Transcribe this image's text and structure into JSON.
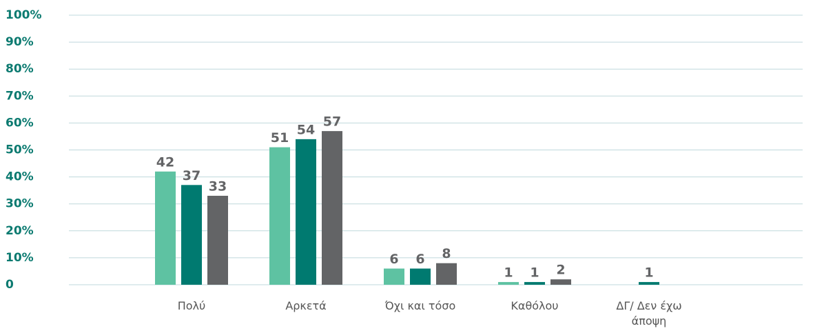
{
  "chart_data": {
    "type": "bar",
    "categories": [
      "Πολύ",
      "Αρκετά",
      "Όχι και τόσο",
      "Καθόλου",
      "ΔΓ/ Δεν έχω άποψη"
    ],
    "series": [
      {
        "color": "#5ec2a2",
        "values": [
          42,
          51,
          6,
          1,
          null
        ]
      },
      {
        "color": "#007a70",
        "values": [
          37,
          54,
          6,
          1,
          1
        ]
      },
      {
        "color": "#636466",
        "values": [
          33,
          57,
          8,
          2,
          null
        ]
      }
    ],
    "ylim": [
      0,
      100
    ],
    "yticks": [
      0,
      {
        "value": 10,
        "label": "10%"
      },
      {
        "value": 20,
        "label": "20%"
      },
      {
        "value": 30,
        "label": "30%"
      },
      {
        "value": 40,
        "label": "40%"
      },
      {
        "value": 50,
        "label": "50%"
      },
      {
        "value": 60,
        "label": "60%"
      },
      {
        "value": 70,
        "label": "70%"
      },
      {
        "value": 80,
        "label": "80%"
      },
      {
        "value": 90,
        "label": "90%"
      },
      {
        "value": 100,
        "label": "100%"
      }
    ],
    "grid": true
  }
}
